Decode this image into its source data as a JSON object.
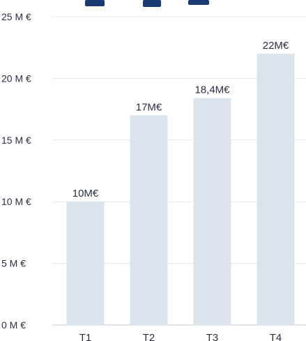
{
  "colors": {
    "bar": "#dde3ec",
    "grid": "#e6e8ec",
    "text": "#2a2f45",
    "title_fragment": "#1a3a73"
  },
  "chart_data": {
    "type": "bar",
    "title": "",
    "xlabel": "",
    "ylabel": "",
    "categories": [
      "T1",
      "T2",
      "T3",
      "T4"
    ],
    "values": [
      10,
      17,
      18.4,
      22
    ],
    "data_labels": [
      "10M€",
      "17M€",
      "18,4M€",
      "22M€"
    ],
    "ylim": [
      0,
      25
    ],
    "yticks": [
      0,
      5,
      10,
      15,
      20,
      25
    ],
    "ytick_labels": [
      "0 M €",
      "5 M €",
      "10 M €",
      "15 M €",
      "20 M €",
      "25 M €"
    ],
    "grid": true,
    "legend": "none"
  }
}
